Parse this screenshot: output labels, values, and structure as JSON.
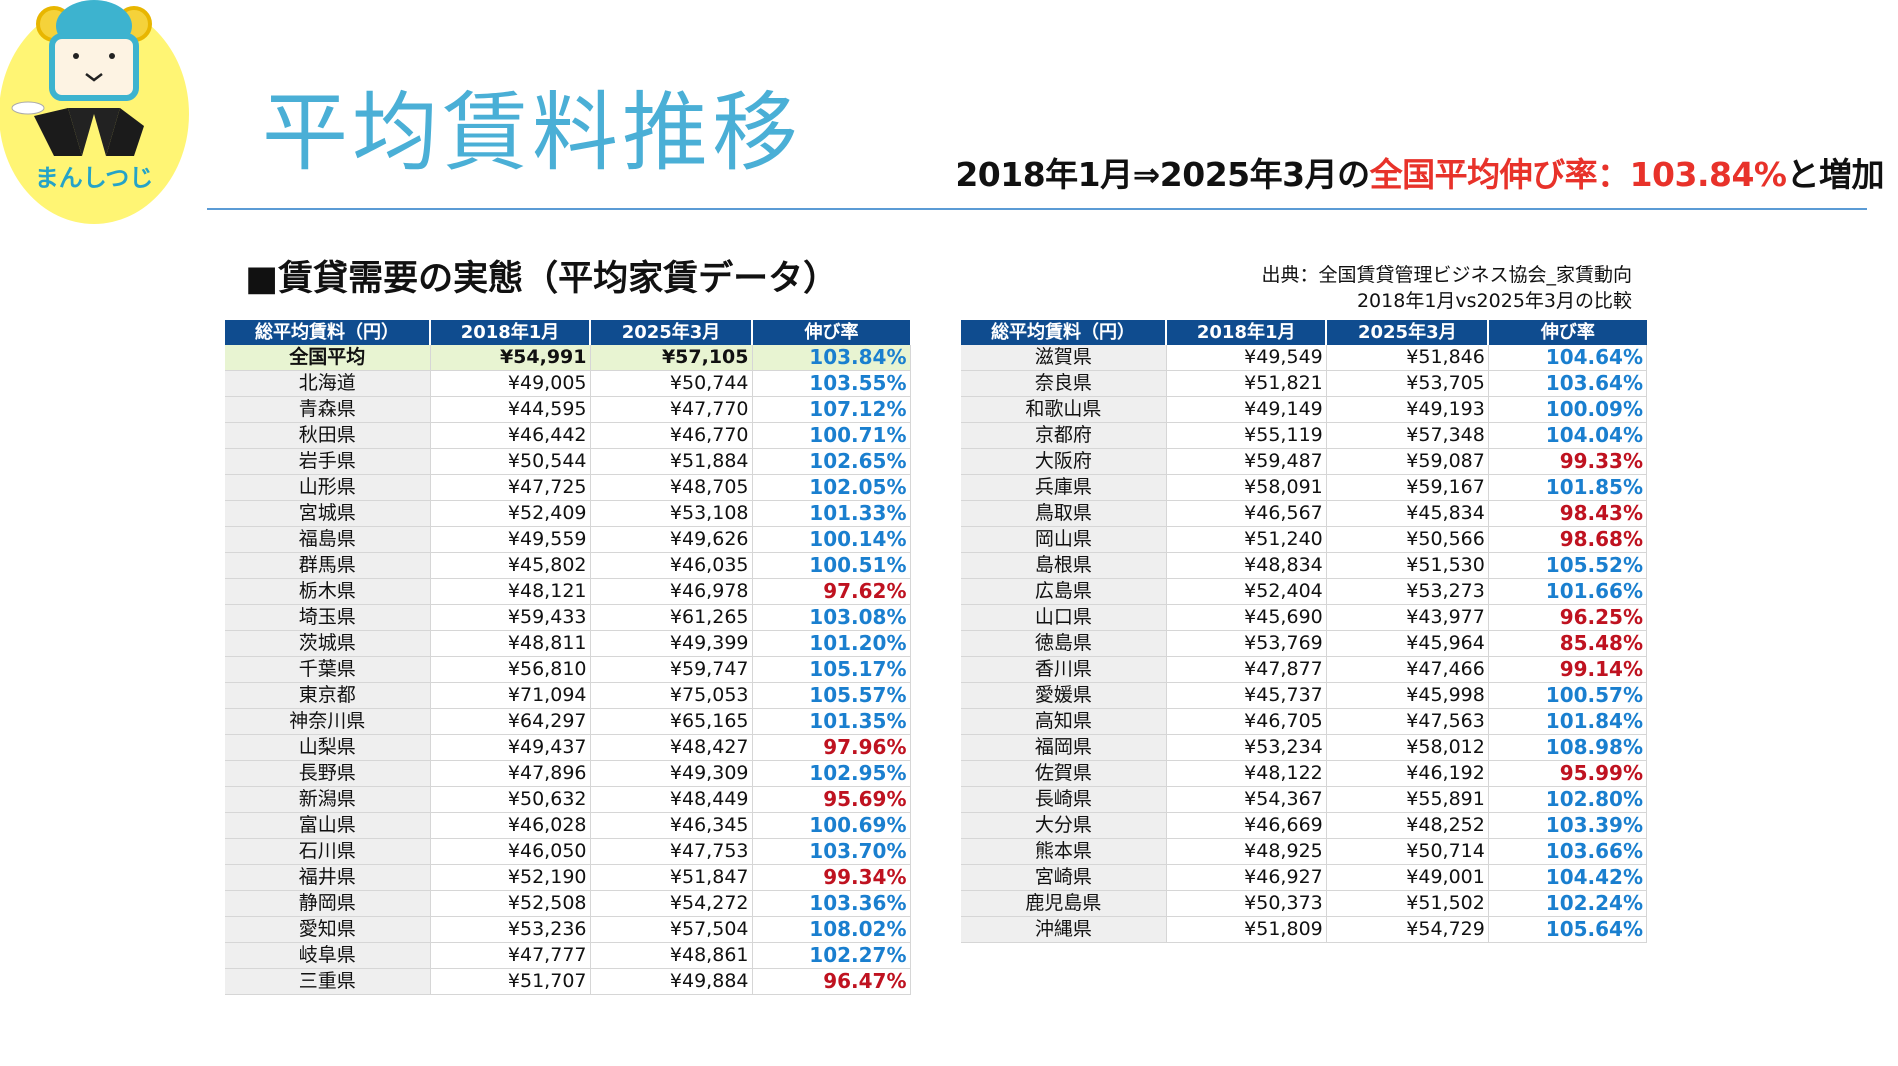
{
  "logo": {
    "text": "まんしつじ"
  },
  "title": "平均賃料推移",
  "headline": {
    "prefix": "2018年1月⇒2025年3月の",
    "highlight": "全国平均伸び率：103.84%",
    "suffix": "と増加"
  },
  "section_title": "■賃貸需要の実態（平均家賃データ）",
  "source": {
    "line1": "出典：全国賃貸管理ビジネス協会_家賃動向",
    "line2": "2018年1月vs2025年3月の比較"
  },
  "table_headers": [
    "総平均賃料（円）",
    "2018年1月",
    "2025年3月",
    "伸び率"
  ],
  "colors": {
    "up": "#1a7fcf",
    "down": "#bf1220",
    "header": "#0f4c8f",
    "title": "#4aafd6",
    "highlight": "#e8322a"
  },
  "left_table": [
    {
      "name": "全国平均",
      "y2018": "¥54,991",
      "y2025": "¥57,105",
      "rate": "103.84%",
      "avg": true
    },
    {
      "name": "北海道",
      "y2018": "¥49,005",
      "y2025": "¥50,744",
      "rate": "103.55%"
    },
    {
      "name": "青森県",
      "y2018": "¥44,595",
      "y2025": "¥47,770",
      "rate": "107.12%"
    },
    {
      "name": "秋田県",
      "y2018": "¥46,442",
      "y2025": "¥46,770",
      "rate": "100.71%"
    },
    {
      "name": "岩手県",
      "y2018": "¥50,544",
      "y2025": "¥51,884",
      "rate": "102.65%"
    },
    {
      "name": "山形県",
      "y2018": "¥47,725",
      "y2025": "¥48,705",
      "rate": "102.05%"
    },
    {
      "name": "宮城県",
      "y2018": "¥52,409",
      "y2025": "¥53,108",
      "rate": "101.33%"
    },
    {
      "name": "福島県",
      "y2018": "¥49,559",
      "y2025": "¥49,626",
      "rate": "100.14%"
    },
    {
      "name": "群馬県",
      "y2018": "¥45,802",
      "y2025": "¥46,035",
      "rate": "100.51%"
    },
    {
      "name": "栃木県",
      "y2018": "¥48,121",
      "y2025": "¥46,978",
      "rate": "97.62%"
    },
    {
      "name": "埼玉県",
      "y2018": "¥59,433",
      "y2025": "¥61,265",
      "rate": "103.08%"
    },
    {
      "name": "茨城県",
      "y2018": "¥48,811",
      "y2025": "¥49,399",
      "rate": "101.20%"
    },
    {
      "name": "千葉県",
      "y2018": "¥56,810",
      "y2025": "¥59,747",
      "rate": "105.17%"
    },
    {
      "name": "東京都",
      "y2018": "¥71,094",
      "y2025": "¥75,053",
      "rate": "105.57%"
    },
    {
      "name": "神奈川県",
      "y2018": "¥64,297",
      "y2025": "¥65,165",
      "rate": "101.35%"
    },
    {
      "name": "山梨県",
      "y2018": "¥49,437",
      "y2025": "¥48,427",
      "rate": "97.96%"
    },
    {
      "name": "長野県",
      "y2018": "¥47,896",
      "y2025": "¥49,309",
      "rate": "102.95%"
    },
    {
      "name": "新潟県",
      "y2018": "¥50,632",
      "y2025": "¥48,449",
      "rate": "95.69%"
    },
    {
      "name": "富山県",
      "y2018": "¥46,028",
      "y2025": "¥46,345",
      "rate": "100.69%"
    },
    {
      "name": "石川県",
      "y2018": "¥46,050",
      "y2025": "¥47,753",
      "rate": "103.70%"
    },
    {
      "name": "福井県",
      "y2018": "¥52,190",
      "y2025": "¥51,847",
      "rate": "99.34%"
    },
    {
      "name": "静岡県",
      "y2018": "¥52,508",
      "y2025": "¥54,272",
      "rate": "103.36%"
    },
    {
      "name": "愛知県",
      "y2018": "¥53,236",
      "y2025": "¥57,504",
      "rate": "108.02%"
    },
    {
      "name": "岐阜県",
      "y2018": "¥47,777",
      "y2025": "¥48,861",
      "rate": "102.27%"
    },
    {
      "name": "三重県",
      "y2018": "¥51,707",
      "y2025": "¥49,884",
      "rate": "96.47%"
    }
  ],
  "right_table": [
    {
      "name": "滋賀県",
      "y2018": "¥49,549",
      "y2025": "¥51,846",
      "rate": "104.64%"
    },
    {
      "name": "奈良県",
      "y2018": "¥51,821",
      "y2025": "¥53,705",
      "rate": "103.64%"
    },
    {
      "name": "和歌山県",
      "y2018": "¥49,149",
      "y2025": "¥49,193",
      "rate": "100.09%"
    },
    {
      "name": "京都府",
      "y2018": "¥55,119",
      "y2025": "¥57,348",
      "rate": "104.04%"
    },
    {
      "name": "大阪府",
      "y2018": "¥59,487",
      "y2025": "¥59,087",
      "rate": "99.33%"
    },
    {
      "name": "兵庫県",
      "y2018": "¥58,091",
      "y2025": "¥59,167",
      "rate": "101.85%"
    },
    {
      "name": "鳥取県",
      "y2018": "¥46,567",
      "y2025": "¥45,834",
      "rate": "98.43%"
    },
    {
      "name": "岡山県",
      "y2018": "¥51,240",
      "y2025": "¥50,566",
      "rate": "98.68%"
    },
    {
      "name": "島根県",
      "y2018": "¥48,834",
      "y2025": "¥51,530",
      "rate": "105.52%"
    },
    {
      "name": "広島県",
      "y2018": "¥52,404",
      "y2025": "¥53,273",
      "rate": "101.66%"
    },
    {
      "name": "山口県",
      "y2018": "¥45,690",
      "y2025": "¥43,977",
      "rate": "96.25%"
    },
    {
      "name": "徳島県",
      "y2018": "¥53,769",
      "y2025": "¥45,964",
      "rate": "85.48%"
    },
    {
      "name": "香川県",
      "y2018": "¥47,877",
      "y2025": "¥47,466",
      "rate": "99.14%"
    },
    {
      "name": "愛媛県",
      "y2018": "¥45,737",
      "y2025": "¥45,998",
      "rate": "100.57%"
    },
    {
      "name": "高知県",
      "y2018": "¥46,705",
      "y2025": "¥47,563",
      "rate": "101.84%"
    },
    {
      "name": "福岡県",
      "y2018": "¥53,234",
      "y2025": "¥58,012",
      "rate": "108.98%"
    },
    {
      "name": "佐賀県",
      "y2018": "¥48,122",
      "y2025": "¥46,192",
      "rate": "95.99%"
    },
    {
      "name": "長崎県",
      "y2018": "¥54,367",
      "y2025": "¥55,891",
      "rate": "102.80%"
    },
    {
      "name": "大分県",
      "y2018": "¥46,669",
      "y2025": "¥48,252",
      "rate": "103.39%"
    },
    {
      "name": "熊本県",
      "y2018": "¥48,925",
      "y2025": "¥50,714",
      "rate": "103.66%"
    },
    {
      "name": "宮崎県",
      "y2018": "¥46,927",
      "y2025": "¥49,001",
      "rate": "104.42%"
    },
    {
      "name": "鹿児島県",
      "y2018": "¥50,373",
      "y2025": "¥51,502",
      "rate": "102.24%"
    },
    {
      "name": "沖縄県",
      "y2018": "¥51,809",
      "y2025": "¥54,729",
      "rate": "105.64%"
    }
  ]
}
